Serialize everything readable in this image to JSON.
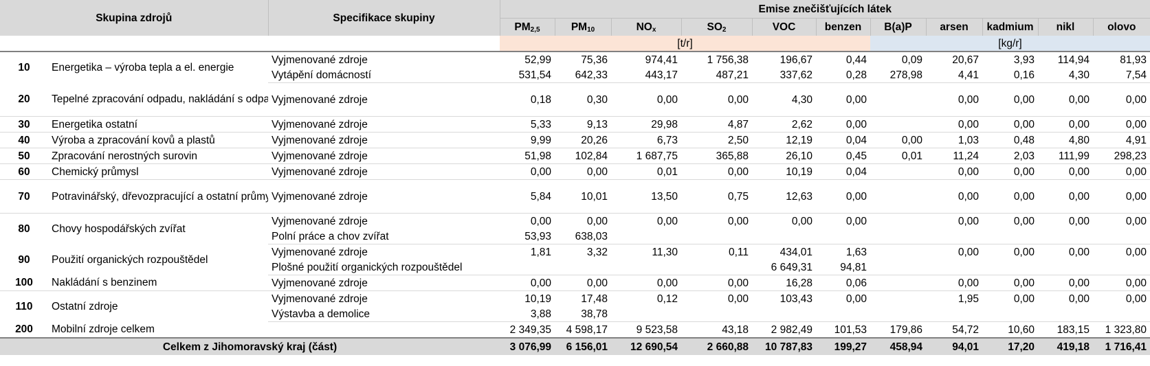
{
  "header": {
    "col_source_group": "Skupina zdrojů",
    "col_group_spec": "Specifikace skupiny",
    "emissions_title": "Emise znečišťujících látek",
    "pollutants": [
      {
        "base": "PM",
        "sub": "2,5"
      },
      {
        "base": "PM",
        "sub": "10"
      },
      {
        "base": "NO",
        "sub": "x"
      },
      {
        "base": "SO",
        "sub": "2"
      },
      {
        "base": "VOC",
        "sub": ""
      },
      {
        "base": "benzen",
        "sub": ""
      },
      {
        "base": "B(a)P",
        "sub": ""
      },
      {
        "base": "arsen",
        "sub": ""
      },
      {
        "base": "kadmium",
        "sub": ""
      },
      {
        "base": "nikl",
        "sub": ""
      },
      {
        "base": "olovo",
        "sub": ""
      }
    ],
    "unit_t": "[t/r]",
    "unit_kg": "[kg/r]"
  },
  "groups": [
    {
      "code": "10",
      "name": "Energetika – výroba tepla a el. energie",
      "rows": [
        {
          "spec": "Vyjmenované zdroje",
          "values": [
            "52,99",
            "75,36",
            "974,41",
            "1 756,38",
            "196,67",
            "0,44",
            "0,09",
            "20,67",
            "3,93",
            "114,94",
            "81,93"
          ]
        },
        {
          "spec": "Vytápění domácností",
          "values": [
            "531,54",
            "642,33",
            "443,17",
            "487,21",
            "337,62",
            "0,28",
            "278,98",
            "4,41",
            "0,16",
            "4,30",
            "7,54"
          ]
        }
      ]
    },
    {
      "code": "20",
      "name": "Tepelné zpracování odpadu, nakládání s odpady a odpadními vodami",
      "rows": [
        {
          "spec": "Vyjmenované zdroje",
          "values": [
            "0,18",
            "0,30",
            "0,00",
            "0,00",
            "4,30",
            "0,00",
            "",
            "0,00",
            "0,00",
            "0,00",
            "0,00"
          ]
        }
      ]
    },
    {
      "code": "30",
      "name": "Energetika ostatní",
      "rows": [
        {
          "spec": "Vyjmenované zdroje",
          "values": [
            "5,33",
            "9,13",
            "29,98",
            "4,87",
            "2,62",
            "0,00",
            "",
            "0,00",
            "0,00",
            "0,00",
            "0,00"
          ]
        }
      ]
    },
    {
      "code": "40",
      "name": "Výroba a zpracování kovů a plastů",
      "rows": [
        {
          "spec": "Vyjmenované zdroje",
          "values": [
            "9,99",
            "20,26",
            "6,73",
            "2,50",
            "12,19",
            "0,04",
            "0,00",
            "1,03",
            "0,48",
            "4,80",
            "4,91"
          ]
        }
      ]
    },
    {
      "code": "50",
      "name": "Zpracování nerostných surovin",
      "rows": [
        {
          "spec": "Vyjmenované zdroje",
          "values": [
            "51,98",
            "102,84",
            "1 687,75",
            "365,88",
            "26,10",
            "0,45",
            "0,01",
            "11,24",
            "2,03",
            "111,99",
            "298,23"
          ]
        }
      ]
    },
    {
      "code": "60",
      "name": "Chemický průmysl",
      "rows": [
        {
          "spec": "Vyjmenované zdroje",
          "values": [
            "0,00",
            "0,00",
            "0,01",
            "0,00",
            "10,19",
            "0,04",
            "",
            "0,00",
            "0,00",
            "0,00",
            "0,00"
          ]
        }
      ]
    },
    {
      "code": "70",
      "name": "Potravinářský, dřevozpracující a ostatní průmysl",
      "rows": [
        {
          "spec": "Vyjmenované zdroje",
          "values": [
            "5,84",
            "10,01",
            "13,50",
            "0,75",
            "12,63",
            "0,00",
            "",
            "0,00",
            "0,00",
            "0,00",
            "0,00"
          ]
        }
      ]
    },
    {
      "code": "80",
      "name": "Chovy hospodářských zvířat",
      "rows": [
        {
          "spec": "Vyjmenované zdroje",
          "values": [
            "0,00",
            "0,00",
            "0,00",
            "0,00",
            "0,00",
            "0,00",
            "",
            "0,00",
            "0,00",
            "0,00",
            "0,00"
          ]
        },
        {
          "spec": "Polní práce a chov zvířat",
          "values": [
            "53,93",
            "638,03",
            "",
            "",
            "",
            "",
            "",
            "",
            "",
            "",
            ""
          ]
        }
      ]
    },
    {
      "code": "90",
      "name": "Použití organických rozpouštědel",
      "rows": [
        {
          "spec": "Vyjmenované zdroje",
          "values": [
            "1,81",
            "3,32",
            "11,30",
            "0,11",
            "434,01",
            "1,63",
            "",
            "0,00",
            "0,00",
            "0,00",
            "0,00"
          ]
        },
        {
          "spec": "Plošné použití organických rozpouštědel",
          "values": [
            "",
            "",
            "",
            "",
            "6 649,31",
            "94,81",
            "",
            "",
            "",
            "",
            ""
          ]
        }
      ]
    },
    {
      "code": "100",
      "name": "Nakládání s benzinem",
      "rows": [
        {
          "spec": "Vyjmenované zdroje",
          "values": [
            "0,00",
            "0,00",
            "0,00",
            "0,00",
            "16,28",
            "0,06",
            "",
            "0,00",
            "0,00",
            "0,00",
            "0,00"
          ]
        }
      ]
    },
    {
      "code": "110",
      "name": "Ostatní zdroje",
      "rows": [
        {
          "spec": "Vyjmenované zdroje",
          "values": [
            "10,19",
            "17,48",
            "0,12",
            "0,00",
            "103,43",
            "0,00",
            "",
            "1,95",
            "0,00",
            "0,00",
            "0,00"
          ]
        },
        {
          "spec": "Výstavba a demolice",
          "values": [
            "3,88",
            "38,78",
            "",
            "",
            "",
            "",
            "",
            "",
            "",
            "",
            ""
          ]
        }
      ]
    },
    {
      "code": "200",
      "name": "Mobilní zdroje celkem",
      "rows": [
        {
          "spec": "",
          "values": [
            "2 349,35",
            "4 598,17",
            "9 523,58",
            "43,18",
            "2 982,49",
            "101,53",
            "179,86",
            "54,72",
            "10,60",
            "183,15",
            "1 323,80"
          ]
        }
      ]
    }
  ],
  "total": {
    "label": "Celkem z Jihomoravský kraj (část)",
    "values": [
      "3 076,99",
      "6 156,01",
      "12 690,54",
      "2 660,88",
      "10 787,83",
      "199,27",
      "458,94",
      "94,01",
      "17,20",
      "419,18",
      "1 716,41"
    ]
  },
  "colors": {
    "header_bg": "#d9d9d9",
    "unit_t_bg": "#fce4d6",
    "unit_kg_bg": "#dce6f1"
  }
}
